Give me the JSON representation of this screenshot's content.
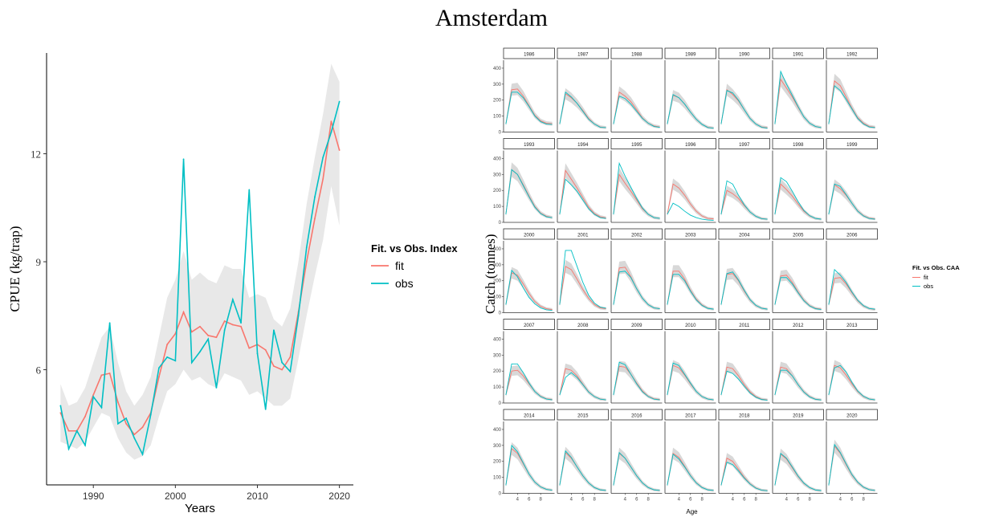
{
  "page": {
    "title": "Amsterdam"
  },
  "colors": {
    "fit": "#F8766D",
    "obs": "#00BFC4",
    "band": "#e8e8e8",
    "strip": "#ffffff"
  },
  "chart_data": [
    {
      "type": "line",
      "xlabel": "Years",
      "ylabel": "CPUE (kg/trap)",
      "xlim": [
        1984.3,
        2021.7
      ],
      "ylim": [
        2.8,
        14.8
      ],
      "xticks": [
        1990,
        2000,
        2010,
        2020
      ],
      "yticks": [
        6,
        9,
        12
      ],
      "grid": false,
      "legend": {
        "title": "Fit. vs Obs. Index",
        "placement": "right",
        "entries": [
          "fit",
          "obs"
        ]
      },
      "x": [
        1986,
        1987,
        1988,
        1989,
        1990,
        1991,
        1992,
        1993,
        1994,
        1995,
        1996,
        1997,
        1998,
        1999,
        2000,
        2001,
        2002,
        2003,
        2004,
        2005,
        2006,
        2007,
        2008,
        2009,
        2010,
        2011,
        2012,
        2013,
        2014,
        2015,
        2016,
        2017,
        2018,
        2019,
        2020
      ],
      "series": [
        {
          "name": "fit",
          "values": [
            4.8,
            4.3,
            4.3,
            4.7,
            5.3,
            5.85,
            5.9,
            5.1,
            4.5,
            4.2,
            4.4,
            4.8,
            5.8,
            6.7,
            7.0,
            7.6,
            7.05,
            7.2,
            6.95,
            6.9,
            7.35,
            7.25,
            7.2,
            6.6,
            6.7,
            6.55,
            6.1,
            6.0,
            6.35,
            7.6,
            9.0,
            10.2,
            11.3,
            12.9,
            12.1
          ]
        },
        {
          "name": "obs",
          "values": [
            5.0,
            3.8,
            4.3,
            3.9,
            5.25,
            4.95,
            7.3,
            4.5,
            4.65,
            4.1,
            3.65,
            4.75,
            6.05,
            6.35,
            6.25,
            11.85,
            6.2,
            6.5,
            6.85,
            5.5,
            7.1,
            7.95,
            7.3,
            11.0,
            6.45,
            4.9,
            7.1,
            6.2,
            5.95,
            7.5,
            9.4,
            10.8,
            11.9,
            12.6,
            13.45
          ]
        }
      ],
      "band": {
        "lower": [
          4.0,
          3.9,
          3.8,
          4.0,
          4.4,
          4.8,
          4.7,
          4.1,
          3.7,
          3.5,
          3.6,
          3.9,
          4.7,
          5.4,
          5.6,
          6.0,
          5.7,
          5.8,
          5.6,
          5.5,
          5.9,
          5.8,
          5.7,
          5.3,
          5.4,
          5.2,
          5.0,
          5.0,
          5.2,
          6.3,
          7.5,
          8.6,
          9.6,
          11.1,
          10.0
        ],
        "upper": [
          5.6,
          5.0,
          5.1,
          5.5,
          6.2,
          6.9,
          7.2,
          6.2,
          5.4,
          5.0,
          5.3,
          5.8,
          6.9,
          8.0,
          8.5,
          9.3,
          8.5,
          8.7,
          8.5,
          8.4,
          8.9,
          8.8,
          8.8,
          8.0,
          8.1,
          8.0,
          7.4,
          7.2,
          7.7,
          9.0,
          10.6,
          11.9,
          13.1,
          14.5,
          14.0
        ]
      }
    },
    {
      "type": "line",
      "xlabel": "Age",
      "ylabel": "Catch (tonnes)",
      "legend": {
        "title": "Fit. vs Obs. CAA",
        "placement": "right",
        "entries": [
          "fit",
          "obs"
        ]
      },
      "facet_years": [
        "1986",
        "1987",
        "1988",
        "1989",
        "1990",
        "1991",
        "1992",
        "1993",
        "1994",
        "1995",
        "1996",
        "1997",
        "1998",
        "1999",
        "2000",
        "2001",
        "2002",
        "2003",
        "2004",
        "2005",
        "2006",
        "2007",
        "2008",
        "2009",
        "2010",
        "2011",
        "2012",
        "2013",
        "2014",
        "2015",
        "2016",
        "2017",
        "2018",
        "2019",
        "2020"
      ],
      "ages": [
        2,
        3,
        4,
        5,
        6,
        7,
        8,
        9,
        10
      ],
      "xticks": [
        4,
        6,
        8
      ],
      "ylim": [
        0,
        450
      ],
      "yticks": [
        0,
        100,
        200,
        300,
        400
      ],
      "fit": [
        [
          50,
          265,
          270,
          225,
          165,
          105,
          70,
          55,
          52
        ],
        [
          50,
          240,
          215,
          180,
          135,
          85,
          50,
          32,
          28
        ],
        [
          50,
          250,
          225,
          190,
          140,
          88,
          55,
          38,
          32
        ],
        [
          50,
          230,
          215,
          175,
          125,
          80,
          48,
          30,
          25
        ],
        [
          50,
          265,
          235,
          195,
          140,
          85,
          50,
          32,
          27
        ],
        [
          50,
          330,
          275,
          220,
          155,
          95,
          55,
          35,
          28
        ],
        [
          50,
          320,
          290,
          220,
          150,
          90,
          55,
          35,
          30
        ],
        [
          50,
          330,
          300,
          235,
          165,
          100,
          58,
          38,
          30
        ],
        [
          50,
          325,
          270,
          215,
          155,
          95,
          55,
          35,
          28
        ],
        [
          50,
          300,
          245,
          195,
          140,
          85,
          50,
          30,
          25
        ],
        [
          50,
          240,
          215,
          170,
          115,
          70,
          40,
          25,
          22
        ],
        [
          50,
          200,
          180,
          150,
          105,
          65,
          38,
          24,
          20
        ],
        [
          50,
          240,
          205,
          165,
          115,
          70,
          40,
          25,
          20
        ],
        [
          50,
          235,
          210,
          170,
          120,
          72,
          42,
          26,
          22
        ],
        [
          50,
          250,
          235,
          180,
          120,
          70,
          40,
          25,
          20
        ],
        [
          50,
          290,
          270,
          210,
          145,
          90,
          50,
          30,
          25
        ],
        [
          50,
          280,
          285,
          225,
          150,
          90,
          50,
          30,
          25
        ],
        [
          50,
          260,
          260,
          210,
          140,
          85,
          48,
          28,
          22
        ],
        [
          50,
          240,
          245,
          200,
          135,
          80,
          45,
          28,
          22
        ],
        [
          50,
          230,
          235,
          190,
          130,
          78,
          44,
          27,
          22
        ],
        [
          50,
          215,
          220,
          180,
          125,
          75,
          42,
          26,
          20
        ],
        [
          50,
          200,
          205,
          170,
          120,
          72,
          42,
          26,
          22
        ],
        [
          50,
          215,
          205,
          170,
          118,
          70,
          40,
          25,
          20
        ],
        [
          50,
          230,
          225,
          180,
          125,
          75,
          42,
          26,
          22
        ],
        [
          50,
          235,
          220,
          175,
          120,
          72,
          40,
          25,
          20
        ],
        [
          50,
          225,
          215,
          170,
          115,
          70,
          40,
          24,
          20
        ],
        [
          50,
          225,
          215,
          170,
          115,
          70,
          40,
          24,
          20
        ],
        [
          50,
          235,
          220,
          175,
          120,
          72,
          40,
          25,
          20
        ],
        [
          50,
          280,
          250,
          185,
          120,
          70,
          40,
          25,
          20
        ],
        [
          50,
          255,
          220,
          165,
          110,
          65,
          36,
          22,
          18
        ],
        [
          50,
          250,
          220,
          165,
          110,
          65,
          36,
          22,
          18
        ],
        [
          50,
          250,
          225,
          170,
          112,
          66,
          37,
          22,
          18
        ],
        [
          50,
          220,
          200,
          150,
          100,
          60,
          34,
          20,
          17
        ],
        [
          50,
          245,
          215,
          160,
          105,
          62,
          35,
          21,
          17
        ],
        [
          50,
          295,
          250,
          180,
          115,
          68,
          38,
          23,
          18
        ]
      ],
      "obs": [
        [
          50,
          250,
          250,
          215,
          160,
          100,
          65,
          50,
          48
        ],
        [
          50,
          250,
          220,
          180,
          130,
          80,
          50,
          30,
          28
        ],
        [
          50,
          225,
          210,
          175,
          130,
          85,
          55,
          35,
          30
        ],
        [
          50,
          235,
          215,
          175,
          125,
          80,
          48,
          28,
          25
        ],
        [
          50,
          260,
          245,
          200,
          140,
          85,
          50,
          30,
          25
        ],
        [
          50,
          380,
          300,
          230,
          160,
          95,
          55,
          35,
          28
        ],
        [
          50,
          290,
          260,
          205,
          145,
          85,
          50,
          32,
          28
        ],
        [
          50,
          330,
          300,
          230,
          160,
          95,
          55,
          35,
          30
        ],
        [
          50,
          270,
          235,
          195,
          140,
          85,
          50,
          30,
          25
        ],
        [
          50,
          370,
          290,
          220,
          150,
          90,
          50,
          30,
          25
        ],
        [
          50,
          120,
          100,
          70,
          45,
          30,
          20,
          15,
          12
        ],
        [
          50,
          260,
          240,
          170,
          110,
          65,
          38,
          23,
          20
        ],
        [
          50,
          280,
          255,
          195,
          130,
          75,
          42,
          25,
          20
        ],
        [
          50,
          240,
          225,
          175,
          120,
          70,
          40,
          24,
          20
        ],
        [
          50,
          265,
          225,
          155,
          95,
          55,
          30,
          18,
          15
        ],
        [
          50,
          390,
          390,
          290,
          190,
          110,
          60,
          35,
          28
        ],
        [
          50,
          255,
          260,
          220,
          150,
          90,
          50,
          30,
          25
        ],
        [
          50,
          240,
          240,
          200,
          135,
          80,
          45,
          27,
          22
        ],
        [
          50,
          245,
          255,
          205,
          140,
          82,
          46,
          28,
          22
        ],
        [
          50,
          220,
          220,
          180,
          125,
          75,
          42,
          25,
          20
        ],
        [
          50,
          270,
          235,
          190,
          130,
          78,
          44,
          26,
          22
        ],
        [
          50,
          245,
          245,
          190,
          125,
          72,
          40,
          25,
          20
        ],
        [
          50,
          160,
          190,
          160,
          115,
          68,
          40,
          24,
          20
        ],
        [
          50,
          255,
          240,
          180,
          120,
          70,
          40,
          24,
          20
        ],
        [
          50,
          250,
          235,
          180,
          125,
          72,
          40,
          25,
          20
        ],
        [
          50,
          200,
          185,
          150,
          105,
          62,
          36,
          22,
          18
        ],
        [
          50,
          205,
          205,
          170,
          115,
          68,
          38,
          23,
          19
        ],
        [
          50,
          220,
          235,
          195,
          130,
          75,
          42,
          25,
          20
        ],
        [
          50,
          300,
          260,
          190,
          120,
          70,
          40,
          25,
          20
        ],
        [
          50,
          265,
          225,
          165,
          110,
          65,
          36,
          22,
          18
        ],
        [
          50,
          255,
          220,
          165,
          110,
          65,
          36,
          22,
          18
        ],
        [
          50,
          245,
          215,
          165,
          110,
          65,
          36,
          22,
          18
        ],
        [
          50,
          195,
          180,
          140,
          95,
          58,
          32,
          20,
          16
        ],
        [
          50,
          250,
          220,
          165,
          108,
          64,
          36,
          21,
          17
        ],
        [
          50,
          305,
          255,
          185,
          118,
          70,
          39,
          23,
          18
        ]
      ]
    }
  ]
}
